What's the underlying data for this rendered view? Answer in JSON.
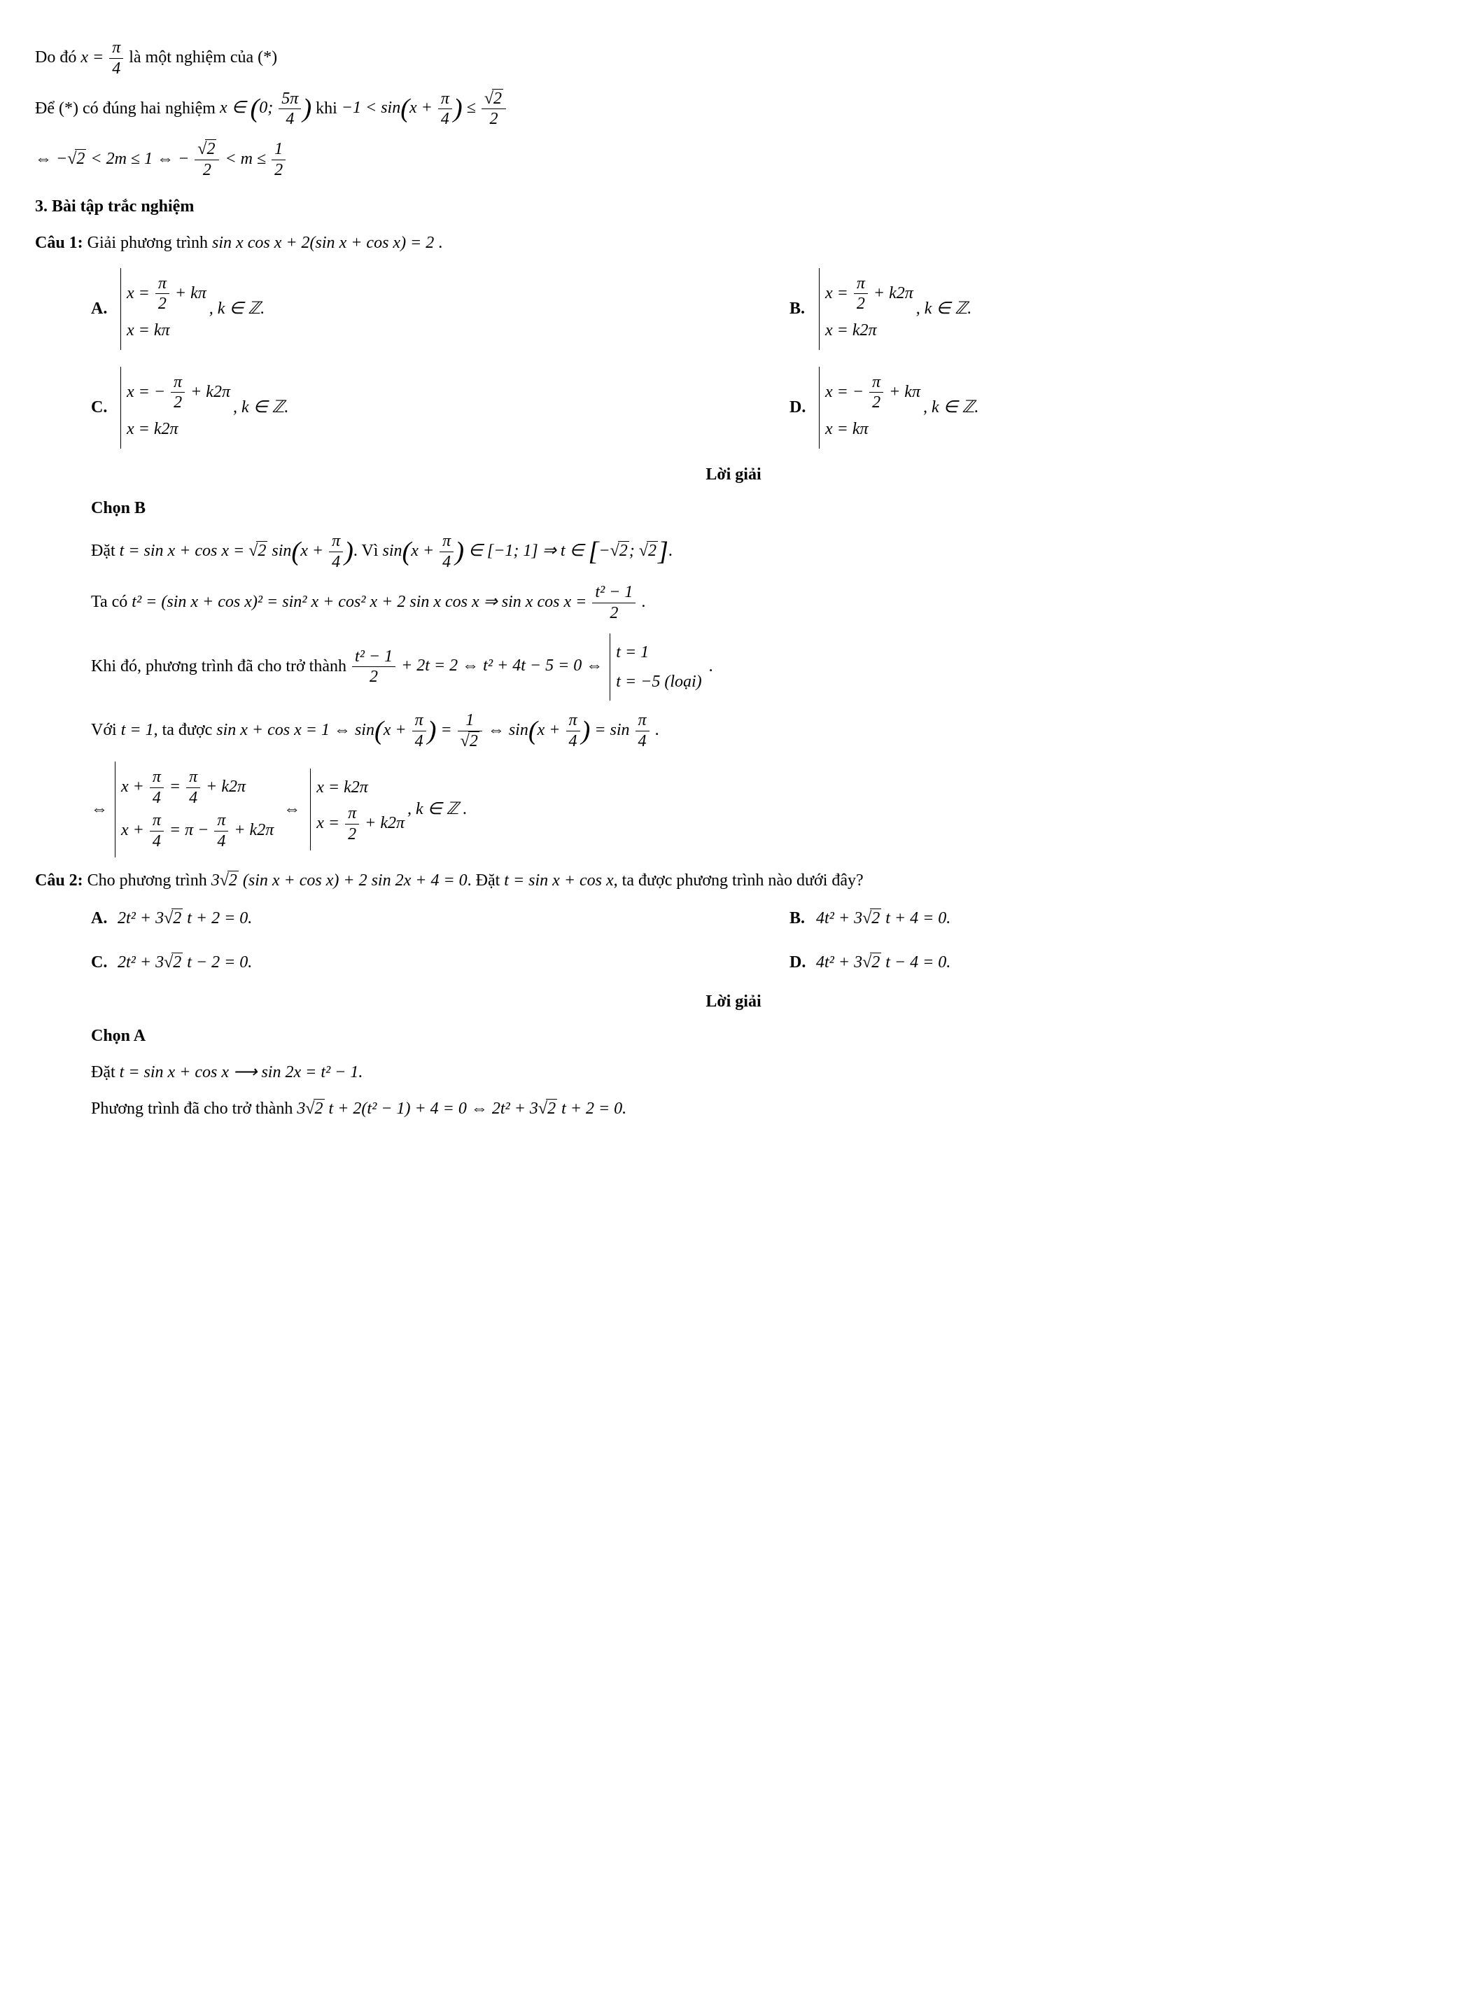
{
  "p1_pre": "Do đó ",
  "p1_eq": "x = π/4",
  "p1_post": " là một nghiệm của (*)",
  "p2_pre": "Để (*) có đúng hai nghiệm ",
  "p2_mid1": "x ∈ (0; 5π/4)",
  "p2_mid2": " khi ",
  "p2_eq2": "−1 < sin(x + π/4) ≤ √2/2",
  "p3_eq": "⇔ −√2 < 2m ≤ 1 ⇔ −√2/2 < m ≤ 1/2",
  "section3": "3. Bài tập trắc nghiệm",
  "q1_label": "Câu 1:",
  "q1_text": " Giải phương trình sin x cos x + 2(sin x + cos x) = 2 .",
  "q1_options": {
    "A": {
      "line1": "x = π/2 + kπ",
      "line2": "x = kπ",
      "tail": ", k ∈ ℤ."
    },
    "B": {
      "line1": "x = π/2 + k2π",
      "line2": "x = k2π",
      "tail": ", k ∈ ℤ."
    },
    "C": {
      "line1": "x = −π/2 + k2π",
      "line2": "x = k2π",
      "tail": ", k ∈ ℤ."
    },
    "D": {
      "line1": "x = −π/2 + kπ",
      "line2": "x = kπ",
      "tail": ", k ∈ ℤ."
    }
  },
  "loi_giai": "Lời giải",
  "q1_chon": "Chọn B",
  "q1_s1": "Đặt t = sin x + cos x = √2 sin(x + π/4). Vì sin(x + π/4) ∈ [−1; 1] ⇒ t ∈ [−√2; √2].",
  "q1_s2": "Ta có t² = (sin x + cos x)² = sin² x + cos² x + 2 sin x cos x ⇒ sin x cos x = (t² − 1)/2 .",
  "q1_s3_pre": "Khi đó, phương trình đã cho trở thành ",
  "q1_s3_eq": "(t² − 1)/2 + 2t = 2 ⇔ t² + 4t − 5 = 0 ⇔",
  "q1_s3_case1": "t = 1",
  "q1_s3_case2": "t = −5 (loại)",
  "q1_s3_dot": ".",
  "q1_s4": "Với t = 1, ta được sin x + cos x = 1 ⇔ sin(x + π/4) = 1/√2 ⇔ sin(x + π/4) = sin π/4 .",
  "q1_s5_lcase1": "x + π/4 = π/4 + k2π",
  "q1_s5_lcase2": "x + π/4 = π − π/4 + k2π",
  "q1_s5_rcase1": "x = k2π",
  "q1_s5_rcase2": "x = π/2 + k2π",
  "q1_s5_tail": ", k ∈ ℤ .",
  "q2_label": "Câu 2:",
  "q2_text": " Cho phương trình 3√2 (sin x + cos x) + 2 sin 2x + 4 = 0. Đặt t = sin x + cos x, ta được phương trình nào dưới đây?",
  "q2_options": {
    "A": "2t² + 3√2 t + 2 = 0.",
    "B": "4t² + 3√2 t + 4 = 0.",
    "C": "2t² + 3√2 t − 2 = 0.",
    "D": "4t² + 3√2 t − 4 = 0."
  },
  "q2_chon": "Chọn A",
  "q2_s1": "Đặt t = sin x + cos x ⟶ sin 2x = t² − 1.",
  "q2_s2": "Phương trình đã cho trở thành 3√2 t + 2(t² − 1) + 4 = 0 ⇔ 2t² + 3√2 t + 2 = 0."
}
